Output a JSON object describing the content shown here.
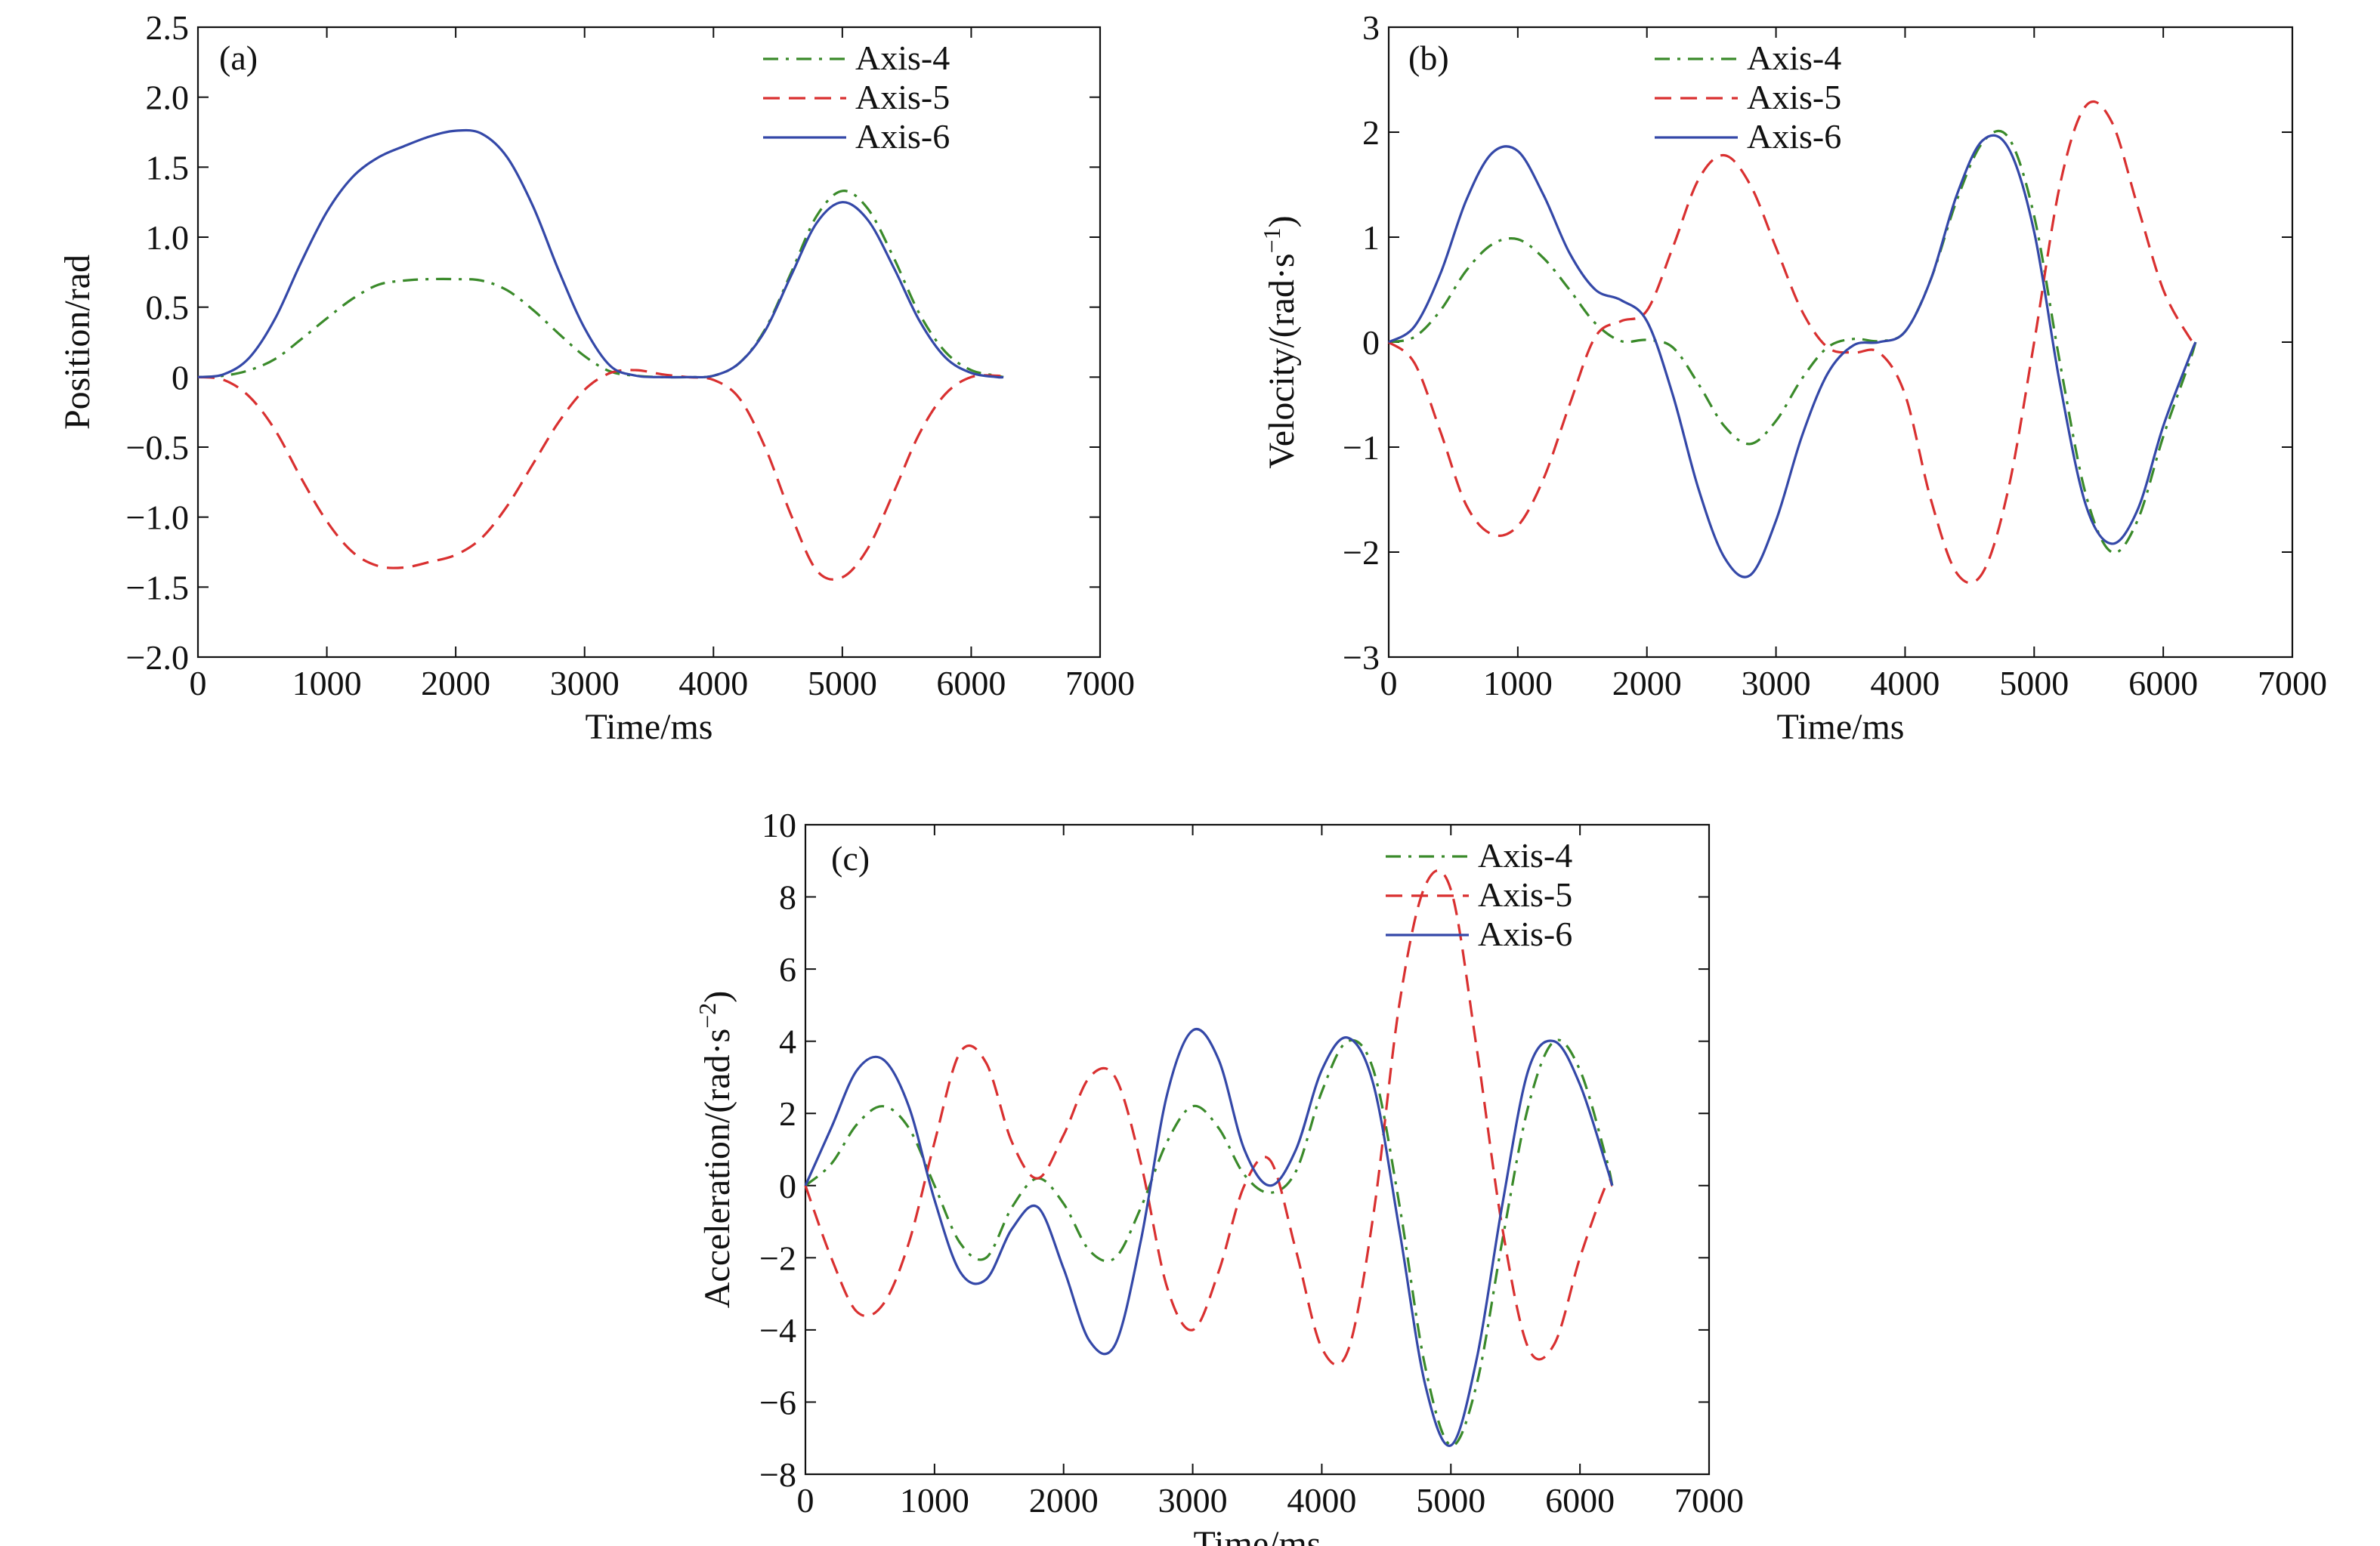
{
  "chart_data": [
    {
      "type": "line",
      "panel_label": "(a)",
      "xlabel": "Time/ms",
      "ylabel": "Position/rad",
      "xlim": [
        0,
        7000
      ],
      "ylim": [
        -2.0,
        2.5
      ],
      "xticks": [
        0,
        1000,
        2000,
        3000,
        4000,
        5000,
        6000,
        7000
      ],
      "xtick_labels": [
        "0",
        "1000",
        "2000",
        "3000",
        "4000",
        "5000",
        "6000",
        "7000"
      ],
      "yticks": [
        -2.0,
        -1.5,
        -1.0,
        -0.5,
        0,
        0.5,
        1.0,
        1.5,
        2.0,
        2.5
      ],
      "ytick_labels": [
        "−2.0",
        "−1.5",
        "−1.0",
        "−0.5",
        "0",
        "0.5",
        "1.0",
        "1.5",
        "2.0",
        "2.5"
      ],
      "legend_position": "top-right",
      "grid": false,
      "series": [
        {
          "name": "Axis-4",
          "color": "#3a8a2a",
          "dash": "dashdot",
          "x": [
            0,
            200,
            400,
            600,
            800,
            1000,
            1200,
            1400,
            1600,
            1800,
            2000,
            2200,
            2400,
            2600,
            2800,
            3000,
            3200,
            3400,
            3600,
            3800,
            4000,
            4200,
            4400,
            4600,
            4800,
            5000,
            5200,
            5400,
            5600,
            5800,
            6000,
            6200,
            6250
          ],
          "y": [
            0,
            0.01,
            0.05,
            0.13,
            0.27,
            0.42,
            0.56,
            0.66,
            0.69,
            0.7,
            0.7,
            0.69,
            0.62,
            0.48,
            0.31,
            0.15,
            0.04,
            0.01,
            0,
            0,
            0.01,
            0.1,
            0.34,
            0.74,
            1.15,
            1.33,
            1.2,
            0.85,
            0.45,
            0.18,
            0.05,
            0.01,
            0
          ]
        },
        {
          "name": "Axis-5",
          "color": "#d93030",
          "dash": "dashed",
          "x": [
            0,
            200,
            400,
            600,
            800,
            1000,
            1200,
            1400,
            1600,
            1800,
            2000,
            2200,
            2400,
            2600,
            2800,
            3000,
            3200,
            3400,
            3600,
            3800,
            4000,
            4200,
            4400,
            4600,
            4800,
            5000,
            5200,
            5400,
            5600,
            5800,
            6000,
            6200,
            6250
          ],
          "y": [
            0,
            -0.02,
            -0.14,
            -0.38,
            -0.72,
            -1.03,
            -1.25,
            -1.35,
            -1.36,
            -1.32,
            -1.27,
            -1.15,
            -0.92,
            -0.62,
            -0.32,
            -0.09,
            0.03,
            0.05,
            0.02,
            0,
            -0.02,
            -0.15,
            -0.5,
            -0.98,
            -1.38,
            -1.43,
            -1.22,
            -0.82,
            -0.4,
            -0.12,
            0,
            0.01,
            0
          ]
        },
        {
          "name": "Axis-6",
          "color": "#3448a8",
          "dash": "solid",
          "x": [
            0,
            200,
            400,
            600,
            800,
            1000,
            1200,
            1400,
            1600,
            1800,
            2000,
            2200,
            2400,
            2600,
            2800,
            3000,
            3200,
            3400,
            3600,
            3800,
            4000,
            4200,
            4400,
            4600,
            4800,
            5000,
            5200,
            5400,
            5600,
            5800,
            6000,
            6200,
            6250
          ],
          "y": [
            0,
            0.02,
            0.14,
            0.42,
            0.82,
            1.18,
            1.43,
            1.57,
            1.65,
            1.72,
            1.76,
            1.74,
            1.57,
            1.22,
            0.76,
            0.35,
            0.08,
            0.01,
            0,
            0,
            0.01,
            0.1,
            0.33,
            0.72,
            1.1,
            1.25,
            1.12,
            0.78,
            0.4,
            0.14,
            0.03,
            0,
            0
          ]
        }
      ]
    },
    {
      "type": "line",
      "panel_label": "(b)",
      "xlabel": "Time/ms",
      "ylabel": "Velocity/(rad·s",
      "ylabel_sup": "−1",
      "ylabel_close": ")",
      "xlim": [
        0,
        7000
      ],
      "ylim": [
        -3,
        3
      ],
      "xticks": [
        0,
        1000,
        2000,
        3000,
        4000,
        5000,
        6000,
        7000
      ],
      "xtick_labels": [
        "0",
        "1000",
        "2000",
        "3000",
        "4000",
        "5000",
        "6000",
        "7000"
      ],
      "yticks": [
        -3,
        -2,
        -1,
        0,
        1,
        2,
        3
      ],
      "ytick_labels": [
        "−3",
        "−2",
        "−1",
        "0",
        "1",
        "2",
        "3"
      ],
      "legend_position": "top-center",
      "grid": false,
      "series": [
        {
          "name": "Axis-4",
          "color": "#3a8a2a",
          "dash": "dashdot",
          "x": [
            0,
            200,
            400,
            600,
            800,
            1000,
            1200,
            1400,
            1600,
            1800,
            2000,
            2200,
            2400,
            2600,
            2800,
            3000,
            3200,
            3400,
            3600,
            3800,
            4000,
            4200,
            4400,
            4600,
            4800,
            5000,
            5200,
            5400,
            5600,
            5800,
            6000,
            6200,
            6250
          ],
          "y": [
            0,
            0.05,
            0.3,
            0.68,
            0.93,
            0.98,
            0.8,
            0.5,
            0.18,
            0.01,
            0.02,
            -0.05,
            -0.4,
            -0.8,
            -0.97,
            -0.75,
            -0.35,
            -0.05,
            0.03,
            0.01,
            0.1,
            0.6,
            1.35,
            1.9,
            1.95,
            1.2,
            -0.2,
            -1.45,
            -2.0,
            -1.7,
            -0.9,
            -0.2,
            0
          ]
        },
        {
          "name": "Axis-5",
          "color": "#d93030",
          "dash": "dashed",
          "x": [
            0,
            200,
            400,
            600,
            800,
            1000,
            1200,
            1400,
            1600,
            1800,
            2000,
            2200,
            2400,
            2600,
            2800,
            3000,
            3200,
            3400,
            3600,
            3800,
            4000,
            4200,
            4400,
            4600,
            4800,
            5000,
            5200,
            5400,
            5600,
            5800,
            6000,
            6200,
            6250
          ],
          "y": [
            0,
            -0.2,
            -0.85,
            -1.55,
            -1.83,
            -1.75,
            -1.3,
            -0.6,
            0.05,
            0.2,
            0.3,
            0.9,
            1.55,
            1.78,
            1.5,
            0.9,
            0.3,
            -0.05,
            -0.1,
            -0.1,
            -0.5,
            -1.5,
            -2.2,
            -2.2,
            -1.4,
            0,
            1.5,
            2.25,
            2.1,
            1.3,
            0.5,
            0.05,
            0
          ]
        },
        {
          "name": "Axis-6",
          "color": "#3448a8",
          "dash": "solid",
          "x": [
            0,
            200,
            400,
            600,
            800,
            1000,
            1200,
            1400,
            1600,
            1800,
            2000,
            2200,
            2400,
            2600,
            2800,
            3000,
            3200,
            3400,
            3600,
            3800,
            4000,
            4200,
            4400,
            4600,
            4800,
            5000,
            5200,
            5400,
            5600,
            5800,
            6000,
            6200,
            6250
          ],
          "y": [
            0,
            0.15,
            0.65,
            1.35,
            1.8,
            1.82,
            1.4,
            0.85,
            0.5,
            0.4,
            0.2,
            -0.5,
            -1.4,
            -2.05,
            -2.22,
            -1.7,
            -0.9,
            -0.3,
            -0.03,
            0,
            0.1,
            0.6,
            1.4,
            1.92,
            1.85,
            1.05,
            -0.4,
            -1.55,
            -1.92,
            -1.6,
            -0.8,
            -0.15,
            0
          ]
        }
      ]
    },
    {
      "type": "line",
      "panel_label": "(c)",
      "xlabel": "Time/ms",
      "ylabel": "Acceleration/(rad·s",
      "ylabel_sup": "−2",
      "ylabel_close": ")",
      "xlim": [
        0,
        7000
      ],
      "ylim": [
        -8,
        10
      ],
      "xticks": [
        0,
        1000,
        2000,
        3000,
        4000,
        5000,
        6000,
        7000
      ],
      "xtick_labels": [
        "0",
        "1000",
        "2000",
        "3000",
        "4000",
        "5000",
        "6000",
        "7000"
      ],
      "yticks": [
        -8,
        -6,
        -4,
        -2,
        0,
        2,
        4,
        6,
        8,
        10
      ],
      "ytick_labels": [
        "−8",
        "−6",
        "−4",
        "−2",
        "0",
        "2",
        "4",
        "6",
        "8",
        "10"
      ],
      "legend_position": "top-right",
      "grid": false,
      "series": [
        {
          "name": "Axis-4",
          "color": "#3a8a2a",
          "dash": "dashdot",
          "x": [
            0,
            200,
            400,
            600,
            800,
            1000,
            1200,
            1400,
            1600,
            1800,
            2000,
            2200,
            2400,
            2600,
            2800,
            3000,
            3200,
            3400,
            3600,
            3800,
            4000,
            4200,
            4400,
            4600,
            4800,
            5000,
            5200,
            5400,
            5600,
            5800,
            6000,
            6200,
            6250
          ],
          "y": [
            0,
            0.6,
            1.7,
            2.2,
            1.6,
            0,
            -1.6,
            -2.0,
            -0.6,
            0.2,
            -0.5,
            -1.8,
            -2.0,
            -0.6,
            1.2,
            2.2,
            1.6,
            0.3,
            -0.2,
            0.4,
            2.6,
            4.0,
            3.2,
            -0.5,
            -5.0,
            -7.2,
            -5.5,
            -1.5,
            2.2,
            4.0,
            3.2,
            0.8,
            0
          ]
        },
        {
          "name": "Axis-5",
          "color": "#d93030",
          "dash": "dashed",
          "x": [
            0,
            200,
            400,
            600,
            800,
            1000,
            1200,
            1400,
            1600,
            1800,
            2000,
            2200,
            2400,
            2600,
            2800,
            3000,
            3200,
            3400,
            3600,
            3800,
            4000,
            4200,
            4400,
            4600,
            4800,
            5000,
            5200,
            5400,
            5600,
            5800,
            6000,
            6200,
            6250
          ],
          "y": [
            0,
            -2.0,
            -3.5,
            -3.3,
            -1.6,
            1.2,
            3.7,
            3.4,
            1.2,
            0.2,
            1.4,
            3.0,
            3.0,
            0.6,
            -2.8,
            -4.0,
            -2.4,
            0,
            0.7,
            -1.8,
            -4.5,
            -4.6,
            -0.8,
            5.0,
            8.3,
            8.2,
            3.8,
            -1.2,
            -4.5,
            -4.4,
            -2.0,
            0,
            0
          ]
        },
        {
          "name": "Axis-6",
          "color": "#3448a8",
          "dash": "solid",
          "x": [
            0,
            200,
            400,
            600,
            800,
            1000,
            1200,
            1400,
            1600,
            1800,
            2000,
            2200,
            2400,
            2600,
            2800,
            3000,
            3200,
            3400,
            3600,
            3800,
            4000,
            4200,
            4400,
            4600,
            4800,
            5000,
            5200,
            5400,
            5600,
            5800,
            6000,
            6200,
            6250
          ],
          "y": [
            0,
            1.6,
            3.2,
            3.5,
            2.2,
            -0.4,
            -2.4,
            -2.6,
            -1.2,
            -0.6,
            -2.3,
            -4.3,
            -4.4,
            -1.5,
            2.5,
            4.3,
            3.5,
            1.0,
            0,
            1.0,
            3.2,
            4.1,
            2.8,
            -1.2,
            -5.5,
            -7.2,
            -4.8,
            -0.5,
            3.2,
            4.0,
            2.8,
            0.6,
            0
          ]
        }
      ]
    }
  ]
}
